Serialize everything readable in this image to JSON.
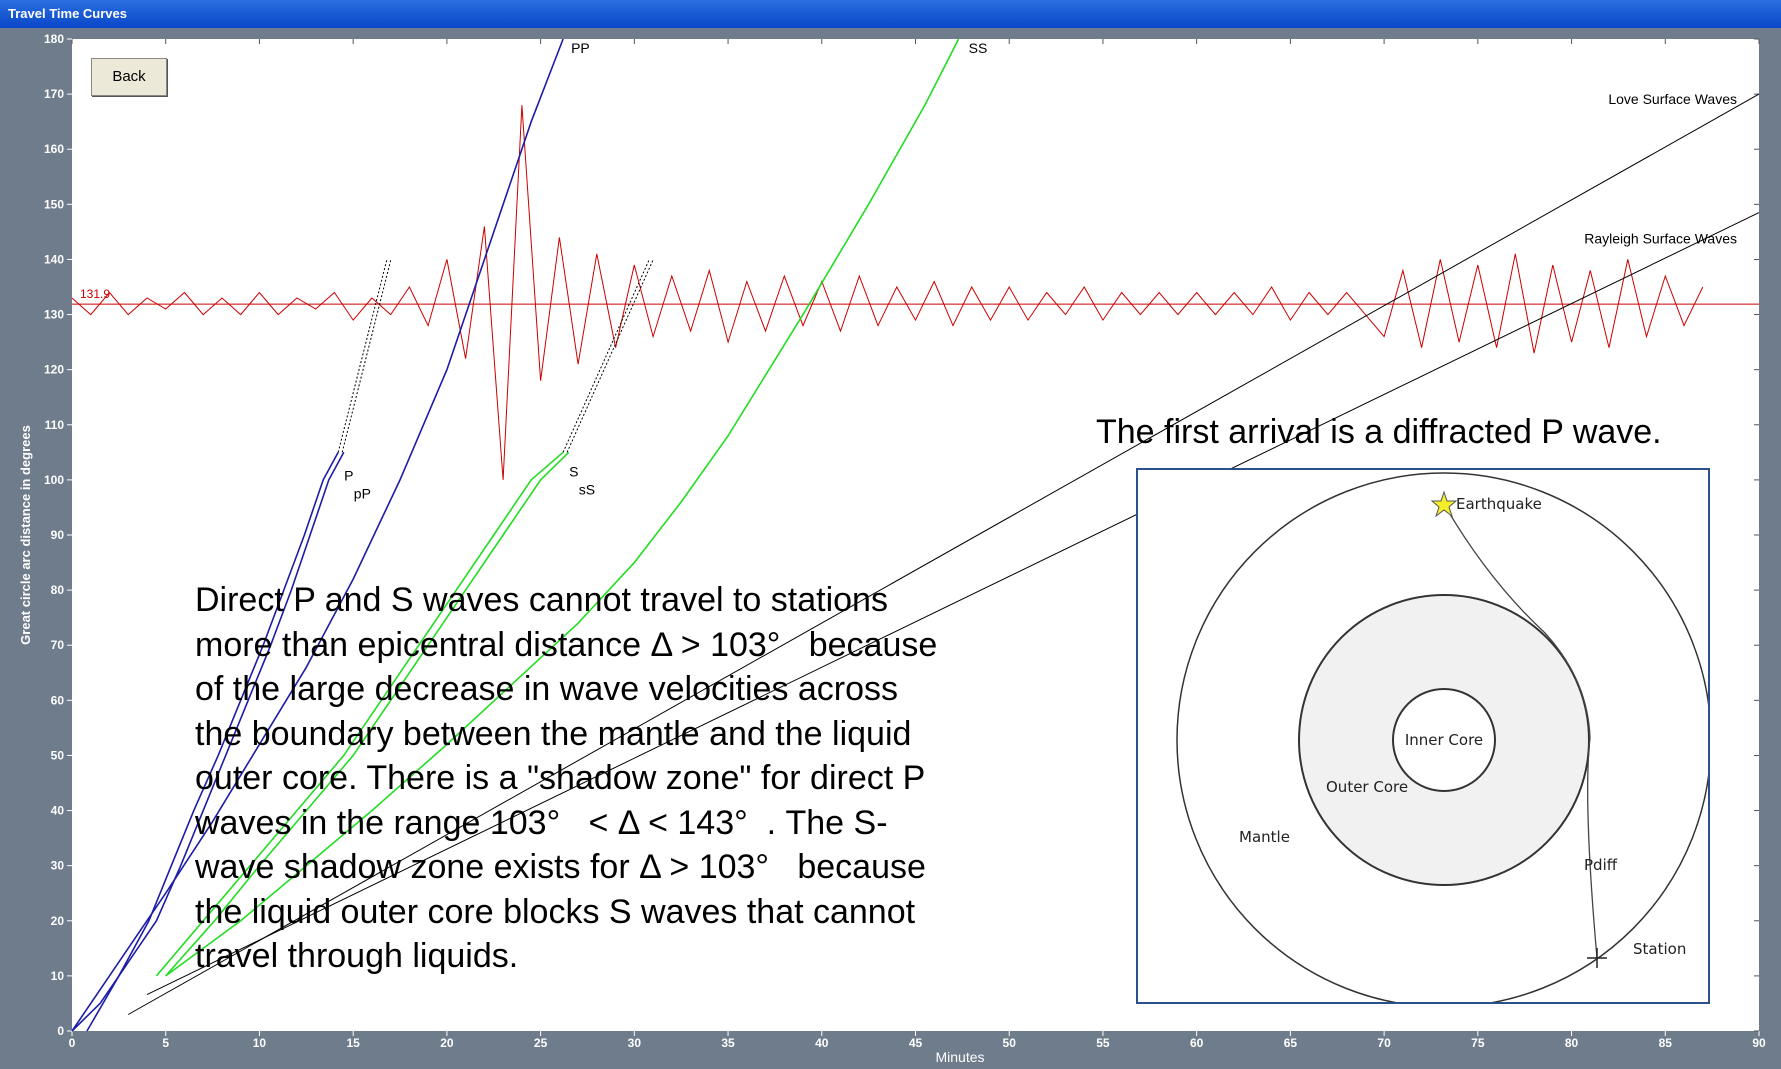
{
  "window": {
    "title": "Travel Time Curves"
  },
  "button": {
    "label": "Back"
  },
  "chart_data": {
    "type": "line",
    "x_label": "Minutes",
    "y_label": "Great circle arc distance in degrees",
    "xlim": [
      0,
      90
    ],
    "ylim": [
      0,
      180
    ],
    "xticks": [
      0,
      5,
      10,
      15,
      20,
      25,
      30,
      35,
      40,
      45,
      50,
      55,
      60,
      65,
      70,
      75,
      80,
      85,
      90
    ],
    "yticks": [
      0,
      10,
      20,
      30,
      40,
      50,
      60,
      70,
      80,
      90,
      100,
      110,
      120,
      130,
      140,
      150,
      160,
      170,
      180
    ],
    "series": [
      {
        "name": "P",
        "color": "#1c1ca8",
        "x": [
          0,
          1.5,
          2.5,
          4.1,
          5.3,
          6.5,
          7.8,
          9,
          10.2,
          11.3,
          12.4,
          13.4,
          14.2
        ],
        "values": [
          0,
          5,
          10,
          20,
          30,
          40,
          50,
          60,
          70,
          80,
          90,
          100,
          105
        ]
      },
      {
        "name": "pP",
        "color": "#1c1ca8",
        "x": [
          0.8,
          2.5,
          4.5,
          5.8,
          7,
          8.2,
          9.4,
          10.6,
          11.7,
          12.7,
          13.7,
          14.5
        ],
        "values": [
          0,
          10,
          20,
          30,
          40,
          50,
          60,
          70,
          80,
          90,
          100,
          105
        ]
      },
      {
        "name": "PP",
        "color": "#1c1ca8",
        "x": [
          0,
          3,
          5,
          7.5,
          10,
          12.5,
          15,
          17.5,
          20,
          22.5,
          24.5,
          26.2
        ],
        "values": [
          0,
          15,
          25,
          38,
          52,
          66,
          82,
          100,
          120,
          145,
          165,
          180
        ]
      },
      {
        "name": "S",
        "color": "#22dd22",
        "x": [
          4.5,
          7,
          9.5,
          12,
          14.5,
          16.5,
          18.5,
          20.5,
          22.5,
          24.5,
          26.2
        ],
        "values": [
          10,
          20,
          30,
          40,
          50,
          60,
          70,
          80,
          90,
          100,
          105
        ]
      },
      {
        "name": "sS",
        "color": "#22dd22",
        "x": [
          5,
          7.6,
          10,
          12.5,
          15,
          17,
          19,
          21,
          23,
          25,
          26.5
        ],
        "values": [
          10,
          20,
          30,
          40,
          50,
          60,
          70,
          80,
          90,
          100,
          105
        ]
      },
      {
        "name": "SS",
        "color": "#22dd22",
        "x": [
          5,
          9,
          12.5,
          16,
          20,
          23.5,
          27,
          30,
          32.5,
          35,
          39,
          42.5,
          45.5,
          47.3
        ],
        "values": [
          10,
          20,
          30,
          40,
          52,
          63,
          74,
          85,
          96,
          108,
          130,
          150,
          168,
          180
        ]
      },
      {
        "name": "Love Surface Waves",
        "color": "#000000",
        "x": [
          3,
          90
        ],
        "values": [
          3,
          170
        ]
      },
      {
        "name": "Rayleigh Surface Waves",
        "color": "#000000",
        "x": [
          4,
          90
        ],
        "values": [
          6.6,
          148.5
        ]
      },
      {
        "color": "#000000",
        "dash": true,
        "x": [
          14.2,
          16.8
        ],
        "values": [
          105,
          140
        ]
      },
      {
        "color": "#000000",
        "dash": true,
        "x": [
          26.2,
          30.8
        ],
        "values": [
          105,
          140
        ]
      }
    ],
    "seismogram": {
      "color": "#cc0000",
      "baseline": 131.9,
      "x": [
        0,
        1,
        2,
        3,
        4,
        5,
        6,
        7,
        8,
        9,
        10,
        11,
        12,
        13,
        14,
        15,
        16,
        17,
        18,
        19,
        20,
        21,
        22,
        23,
        24,
        25,
        26,
        27,
        28,
        29,
        30,
        31,
        32,
        33,
        34,
        35,
        36,
        37,
        38,
        39,
        40,
        41,
        42,
        43,
        44,
        45,
        46,
        47,
        48,
        49,
        50,
        51,
        52,
        53,
        54,
        55,
        56,
        57,
        58,
        59,
        60,
        61,
        62,
        63,
        64,
        65,
        66,
        67,
        68,
        69,
        70,
        71,
        72,
        73,
        74,
        75,
        76,
        77,
        78,
        79,
        80,
        81,
        82,
        83,
        84,
        85,
        86,
        87
      ],
      "values": [
        133,
        130,
        134,
        130,
        133,
        131,
        134,
        130,
        133,
        130,
        134,
        130,
        133,
        131,
        134,
        129,
        133,
        130,
        135,
        128,
        140,
        122,
        146,
        100,
        168,
        118,
        144,
        121,
        141,
        124,
        139,
        126,
        137,
        127,
        138,
        125,
        136,
        127,
        137,
        128,
        136,
        127,
        137,
        128,
        135,
        129,
        136,
        128,
        135,
        129,
        135,
        129,
        134,
        130,
        135,
        129,
        134,
        130,
        134,
        130,
        134,
        130,
        134,
        130,
        135,
        129,
        134,
        130,
        134,
        130,
        126,
        138,
        124,
        140,
        125,
        139,
        124,
        141,
        123,
        139,
        125,
        138,
        124,
        140,
        126,
        137,
        128,
        135
      ]
    }
  },
  "notes": {
    "shadow_zone": {
      "lines": [
        "Direct P and S waves cannot travel to stations",
        "more than epicentral distance Δ > 103°   because",
        "of the large decrease in wave velocities across",
        "the boundary between the mantle and the liquid",
        "outer core. There is a \"shadow zone\" for direct P",
        "waves in the range 103°   < Δ < 143°  . The S-",
        "wave shadow zone exists for Δ > 103°   because",
        "the liquid outer core blocks S waves that cannot",
        "travel through liquids."
      ]
    },
    "first_arrival": "The first arrival is a diffracted P wave."
  },
  "diagram": {
    "labels": {
      "earthquake": "Earthquake",
      "inner_core": "Inner Core",
      "outer_core": "Outer Core",
      "mantle": "Mantle",
      "ray": "Pdiff",
      "station": "Station"
    }
  }
}
